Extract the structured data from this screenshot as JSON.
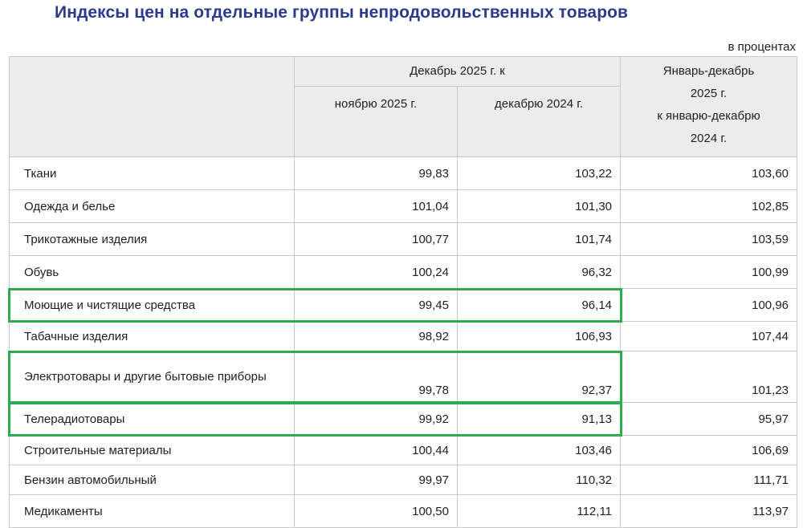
{
  "title": "Индексы цен на отдельные группы непродовольственных товаров",
  "unit": "в процентах",
  "header": {
    "group_label": "Декабрь 2025 г. к",
    "col_nov": "ноябрю 2025 г.",
    "col_dec": "декабрю 2024 г.",
    "col_annual": [
      "Январь-декабрь",
      "2025 г.",
      "к январю-декабрю",
      "2024 г."
    ]
  },
  "rows": [
    {
      "name": "Ткани",
      "nov": "99,83",
      "dec": "103,22",
      "annual": "103,60"
    },
    {
      "name": "Одежда и белье",
      "nov": "101,04",
      "dec": "101,30",
      "annual": "102,85"
    },
    {
      "name": "Трикотажные изделия",
      "nov": "100,77",
      "dec": "101,74",
      "annual": "103,59"
    },
    {
      "name": "Обувь",
      "nov": "100,24",
      "dec": "96,32",
      "annual": "100,99"
    },
    {
      "name": "Моющие и чистящие средства",
      "nov": "99,45",
      "dec": "96,14",
      "annual": "100,96"
    },
    {
      "name": "Табачные изделия",
      "nov": "98,92",
      "dec": "106,93",
      "annual": "107,44"
    },
    {
      "name": "Электротовары и другие бытовые приборы",
      "nov": "99,78",
      "dec": "92,37",
      "annual": "101,23"
    },
    {
      "name": "Телерадиотовары",
      "nov": "99,92",
      "dec": "91,13",
      "annual": "95,97"
    },
    {
      "name": "Строительные материалы",
      "nov": "100,44",
      "dec": "103,46",
      "annual": "106,69"
    },
    {
      "name": "Бензин автомобильный",
      "nov": "99,97",
      "dec": "110,32",
      "annual": "111,71"
    },
    {
      "name": "Медикаменты",
      "nov": "100,50",
      "dec": "112,11",
      "annual": "113,97"
    }
  ],
  "highlight_color": "#2eab4f"
}
